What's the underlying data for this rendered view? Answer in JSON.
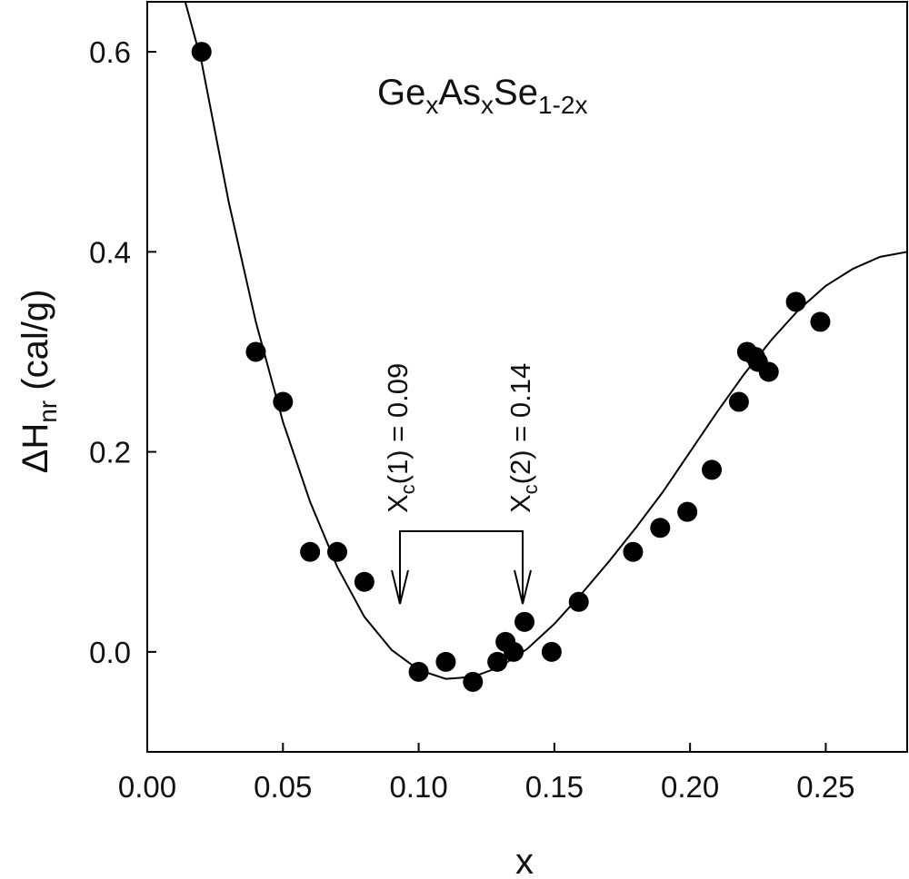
{
  "chart_data": {
    "type": "scatter",
    "title_parts": [
      "Ge",
      "x",
      "As",
      "x",
      "Se",
      "1-2x"
    ],
    "x_label": "x",
    "y_label_parts": [
      "ΔH",
      "nr",
      " (cal/g)"
    ],
    "annotations": [
      {
        "main": "X",
        "sub": "c",
        "rest": "(1) = 0.09"
      },
      {
        "main": "X",
        "sub": "c",
        "rest": "(2) = 0.14"
      }
    ],
    "xlim": [
      0,
      0.28
    ],
    "ylim": [
      -0.1,
      0.65
    ],
    "xticks": [
      {
        "value": 0,
        "label": "0.00"
      },
      0.05,
      {
        "value": 0.1,
        "label": "0.10"
      },
      0.15,
      {
        "value": 0.2,
        "label": "0.20"
      },
      0.25
    ],
    "yticks": [
      {
        "value": 0,
        "label": "0.0"
      },
      0.2,
      0.4,
      0.6
    ],
    "series": [
      {
        "type": "scatter",
        "color": "#000000",
        "x": [
          0.02,
          0.04,
          0.05,
          0.06,
          0.07,
          0.08,
          0.1,
          0.11,
          0.12,
          0.129,
          0.132,
          0.135,
          0.139,
          0.149,
          0.159,
          0.179,
          0.189,
          0.199,
          0.208,
          0.218,
          0.221,
          0.224,
          0.225,
          0.229,
          0.239,
          0.248
        ],
        "values": [
          0.6,
          0.3,
          0.25,
          0.1,
          0.1,
          0.07,
          -0.02,
          -0.01,
          -0.03,
          -0.01,
          0.01,
          0.0,
          0.03,
          0.0,
          0.05,
          0.1,
          0.124,
          0.14,
          0.182,
          0.25,
          0.3,
          0.295,
          0.29,
          0.28,
          0.35,
          0.33
        ]
      },
      {
        "type": "line",
        "color": "#000000",
        "x": [
          0.014,
          0.02,
          0.03,
          0.04,
          0.05,
          0.06,
          0.07,
          0.08,
          0.09,
          0.1,
          0.11,
          0.12,
          0.13,
          0.14,
          0.15,
          0.16,
          0.17,
          0.18,
          0.19,
          0.2,
          0.21,
          0.22,
          0.23,
          0.24,
          0.25,
          0.26,
          0.27,
          0.28
        ],
        "values": [
          0.65,
          0.59,
          0.45,
          0.33,
          0.23,
          0.15,
          0.085,
          0.035,
          0.002,
          -0.018,
          -0.027,
          -0.025,
          -0.015,
          0.003,
          0.028,
          0.058,
          0.09,
          0.124,
          0.16,
          0.2,
          0.24,
          0.278,
          0.312,
          0.342,
          0.366,
          0.383,
          0.395,
          0.4
        ]
      }
    ]
  }
}
